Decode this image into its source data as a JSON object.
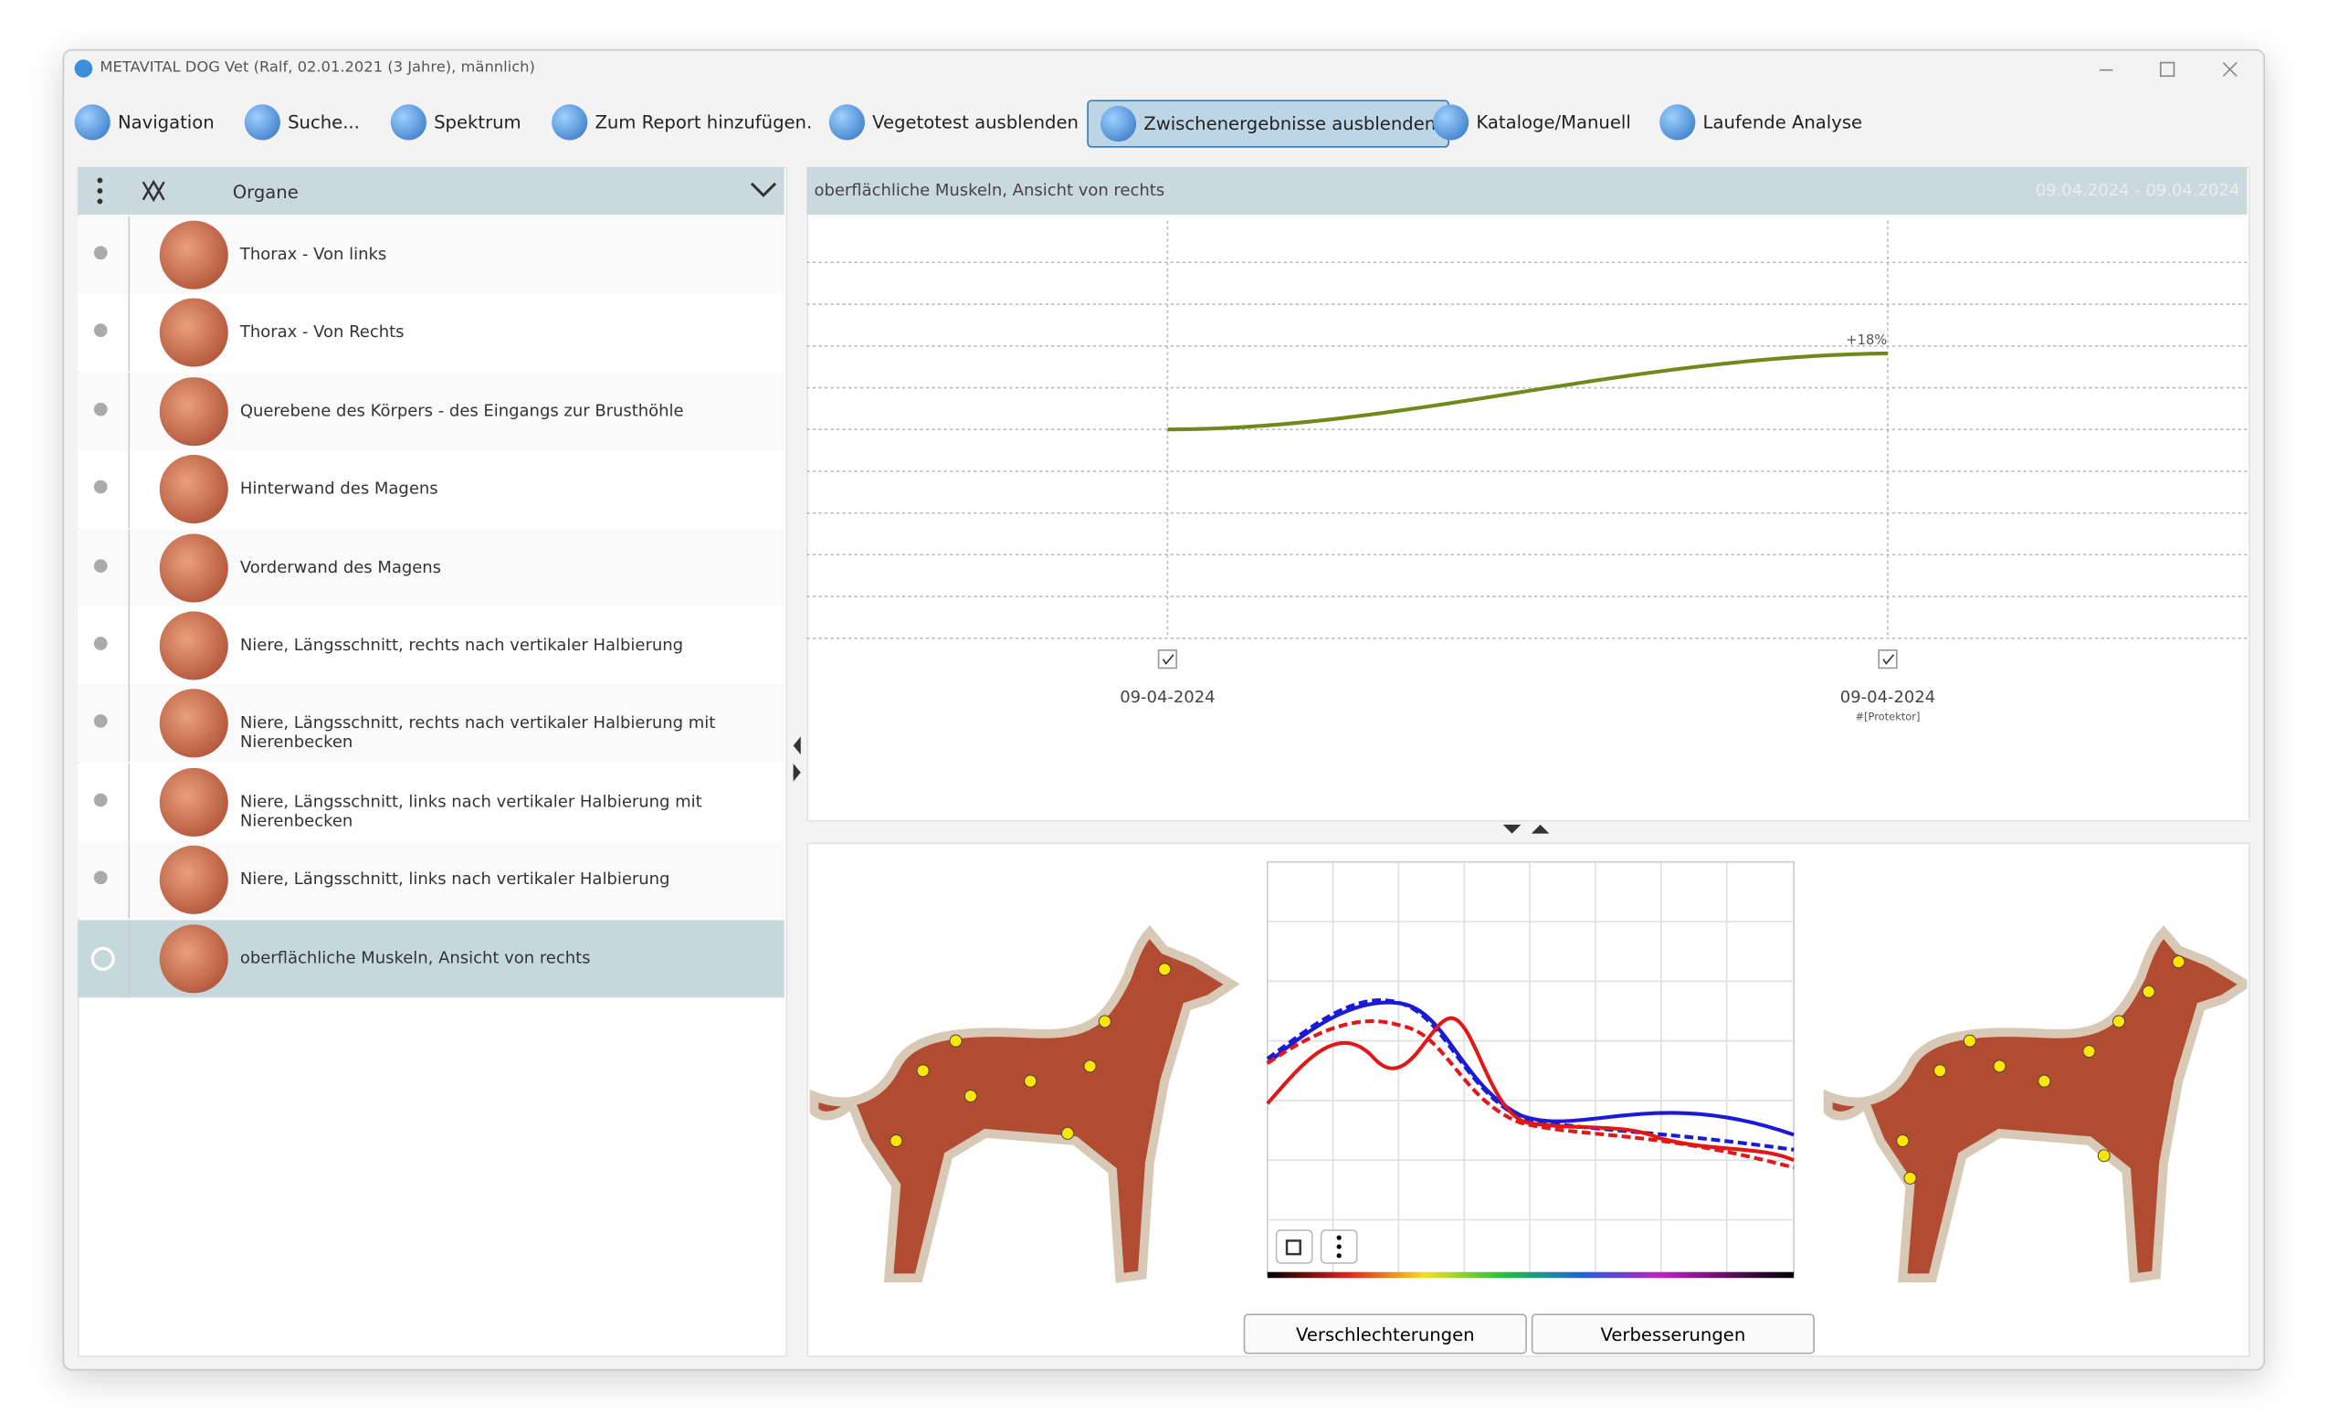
{
  "window": {
    "title": "METAVITAL DOG Vet (Ralf, 02.01.2021 (3 Jahre), männlich)"
  },
  "toolbar": {
    "buttons": [
      "Navigation",
      "Suche...",
      "Spektrum",
      "Zum Report hinzufügen.",
      "Vegetotest ausblenden",
      "Zwischenergebnisse ausblenden",
      "Kataloge/Manuell",
      "Laufende Analyse"
    ]
  },
  "left_panel": {
    "header": "Organe",
    "items": [
      "Thorax - Von links",
      "Thorax - Von Rechts",
      "Querebene des Körpers - des Eingangs zur Brusthöhle",
      "Hinterwand des Magens",
      "Vorderwand des Magens",
      "Niere, Längsschnitt, rechts nach vertikaler Halbierung",
      "Niere, Längsschnitt, rechts nach vertikaler Halbierung mit Nierenbecken",
      "Niere, Längsschnitt, links nach vertikaler Halbierung mit Nierenbecken",
      "Niere, Längsschnitt, links nach vertikaler Halbierung",
      "oberflächliche Muskeln, Ansicht von rechts"
    ]
  },
  "graph": {
    "title": "oberflächliche Muskeln, Ansicht von rechts",
    "date_range": "09.04.2024 - 09.04.2024",
    "annotation": "+18%",
    "points": [
      {
        "date": "09-04-2024"
      },
      {
        "date": "09-04-2024",
        "note": "#[Protektor]"
      }
    ]
  },
  "bottom_buttons": [
    "Verschlechterungen",
    "Verbesserungen"
  ]
}
